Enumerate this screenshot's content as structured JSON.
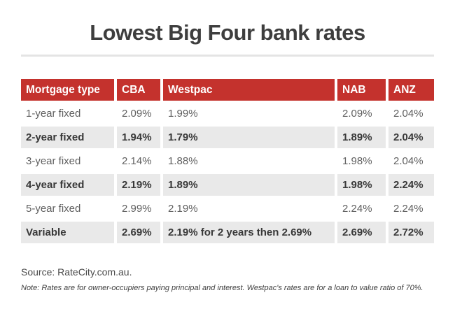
{
  "chart_data": {
    "type": "table",
    "title": "Lowest Big Four bank rates",
    "columns": [
      "Mortgage type",
      "CBA",
      "Westpac",
      "NAB",
      "ANZ"
    ],
    "rows": [
      [
        "1-year fixed",
        "2.09%",
        "1.99%",
        "2.09%",
        "2.04%"
      ],
      [
        "2-year fixed",
        "1.94%",
        "1.79%",
        "1.89%",
        "2.04%"
      ],
      [
        "3-year fixed",
        "2.14%",
        "1.88%",
        "1.98%",
        "2.04%"
      ],
      [
        "4-year fixed",
        "2.19%",
        "1.89%",
        "1.98%",
        "2.24%"
      ],
      [
        "5-year fixed",
        "2.99%",
        "2.19%",
        "2.24%",
        "2.24%"
      ],
      [
        "Variable",
        "2.69%",
        "2.19% for 2 years then 2.69%",
        "2.69%",
        "2.72%"
      ]
    ],
    "source": "Source: RateCity.com.au.",
    "note": "Note: Rates are for owner-occupiers paying principal and interest. Westpac's rates are for a loan to value ratio of 70%.",
    "layout": {
      "striped_rows": "even rows shaded and bold",
      "legend": "none",
      "grid": "cell-gap separators"
    }
  },
  "colors": {
    "header_bg": "#c4322d",
    "header_text": "#ffffff",
    "alt_row_bg": "#e9e9e9",
    "text_regular": "#5f5f5f",
    "text_bold": "#383838",
    "title": "#3e3e3e",
    "divider": "#e4e4e4"
  }
}
